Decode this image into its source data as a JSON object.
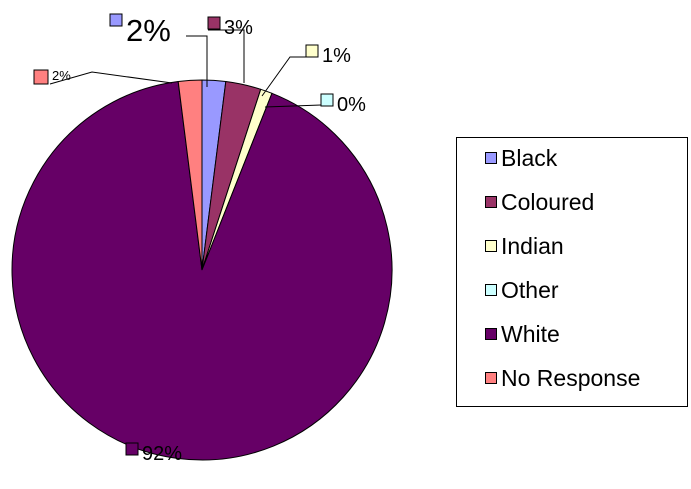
{
  "chart_data": {
    "type": "pie",
    "categories": [
      "Black",
      "Coloured",
      "Indian",
      "Other",
      "White",
      "No Response"
    ],
    "values": [
      2,
      3,
      1,
      0,
      92,
      2
    ],
    "data_labels": [
      "2%",
      "3%",
      "1%",
      "0%",
      "92%",
      "2%"
    ],
    "colors": [
      "#9999ff",
      "#993366",
      "#ffffcc",
      "#ccffff",
      "#660066",
      "#ff8080"
    ],
    "start_angle_deg": 0,
    "direction": "clockwise",
    "legend_position": "right",
    "title": ""
  }
}
